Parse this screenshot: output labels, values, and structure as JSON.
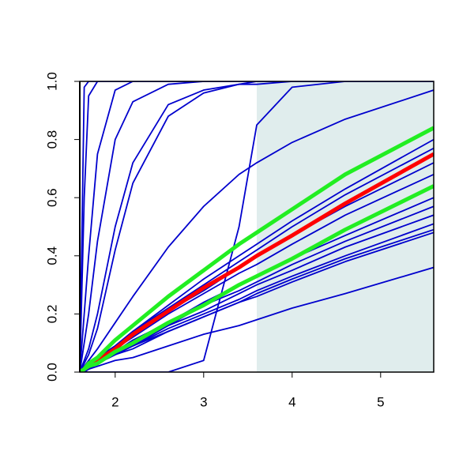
{
  "chart_data": {
    "type": "line",
    "x": [
      1.6,
      1.65,
      1.7,
      1.8,
      2.0,
      2.2,
      2.6,
      3.0,
      3.4,
      3.6,
      4.0,
      4.6,
      5.6
    ],
    "xlim": [
      1.6,
      5.6
    ],
    "ylim": [
      0,
      1
    ],
    "xticks": [
      2,
      3,
      4,
      5
    ],
    "yticks": [
      {
        "value": 0,
        "label": "0.0"
      },
      {
        "value": 0.2,
        "label": "0.2"
      },
      {
        "value": 0.4,
        "label": "0.4"
      },
      {
        "value": 0.6,
        "label": "0.6"
      },
      {
        "value": 0.8,
        "label": "0.8"
      },
      {
        "value": 1,
        "label": "1.0"
      }
    ],
    "shaded_region": {
      "x": [
        3.6,
        5.6
      ],
      "color": "#e0eded"
    },
    "series": [
      {
        "color": "#0000cd",
        "width": 1.8,
        "values": [
          0,
          0.98,
          1,
          1,
          1,
          1,
          1,
          1,
          1,
          1,
          1,
          1,
          1
        ]
      },
      {
        "color": "#0000cd",
        "width": 1.8,
        "values": [
          0,
          0.6,
          0.95,
          1,
          1,
          1,
          1,
          1,
          1,
          1,
          1,
          1,
          1
        ]
      },
      {
        "color": "#0000cd",
        "width": 1.8,
        "values": [
          0,
          0.2,
          0.4,
          0.75,
          0.97,
          1,
          1,
          1,
          1,
          1,
          1,
          1,
          1
        ]
      },
      {
        "color": "#0000cd",
        "width": 1.8,
        "values": [
          0,
          0.1,
          0.2,
          0.45,
          0.8,
          0.93,
          0.99,
          1,
          1,
          1,
          1,
          1,
          1
        ]
      },
      {
        "color": "#0000cd",
        "width": 1.8,
        "values": [
          0,
          0.04,
          0.08,
          0.2,
          0.5,
          0.72,
          0.92,
          0.97,
          0.99,
          1,
          1,
          1,
          1
        ]
      },
      {
        "color": "#0000cd",
        "width": 1.8,
        "values": [
          0,
          0.03,
          0.06,
          0.15,
          0.42,
          0.65,
          0.88,
          0.96,
          0.99,
          0.99,
          1,
          1,
          1
        ]
      },
      {
        "color": "#0000cd",
        "width": 1.8,
        "values": [
          0,
          0.02,
          0.04,
          0.08,
          0.17,
          0.26,
          0.43,
          0.57,
          0.68,
          0.72,
          0.79,
          0.87,
          0.97
        ]
      },
      {
        "color": "#0000cd",
        "width": 1.8,
        "values": [
          0,
          0,
          0,
          0,
          0,
          0,
          0,
          0.04,
          0.5,
          0.85,
          0.98,
          1,
          1
        ]
      },
      {
        "color": "#0000cd",
        "width": 1.8,
        "values": [
          0,
          0.01,
          0.02,
          0.05,
          0.09,
          0.14,
          0.23,
          0.32,
          0.4,
          0.44,
          0.52,
          0.63,
          0.8
        ]
      },
      {
        "color": "#0000cd",
        "width": 1.8,
        "values": [
          0,
          0.01,
          0.02,
          0.05,
          0.09,
          0.14,
          0.22,
          0.3,
          0.38,
          0.42,
          0.5,
          0.61,
          0.77
        ]
      },
      {
        "color": "#0000cd",
        "width": 1.8,
        "values": [
          0,
          0.01,
          0.02,
          0.04,
          0.08,
          0.13,
          0.21,
          0.28,
          0.36,
          0.4,
          0.47,
          0.57,
          0.72
        ]
      },
      {
        "color": "#0000cd",
        "width": 1.8,
        "values": [
          0,
          0.01,
          0.02,
          0.04,
          0.08,
          0.12,
          0.2,
          0.27,
          0.34,
          0.37,
          0.44,
          0.54,
          0.68
        ]
      },
      {
        "color": "#0000cd",
        "width": 1.8,
        "values": [
          0,
          0.01,
          0.02,
          0.04,
          0.07,
          0.11,
          0.17,
          0.24,
          0.3,
          0.33,
          0.39,
          0.47,
          0.6
        ]
      },
      {
        "color": "#0000cd",
        "width": 1.8,
        "values": [
          0,
          0.01,
          0.02,
          0.03,
          0.07,
          0.1,
          0.16,
          0.23,
          0.28,
          0.31,
          0.37,
          0.45,
          0.57
        ]
      },
      {
        "color": "#0000cd",
        "width": 1.8,
        "values": [
          0,
          0.01,
          0.02,
          0.03,
          0.06,
          0.09,
          0.16,
          0.21,
          0.27,
          0.3,
          0.35,
          0.43,
          0.54
        ]
      },
      {
        "color": "#0000cd",
        "width": 1.8,
        "values": [
          0,
          0.01,
          0.02,
          0.03,
          0.06,
          0.09,
          0.15,
          0.2,
          0.25,
          0.28,
          0.33,
          0.4,
          0.51
        ]
      },
      {
        "color": "#0000cd",
        "width": 1.8,
        "values": [
          0,
          0.01,
          0.01,
          0.03,
          0.06,
          0.09,
          0.14,
          0.19,
          0.24,
          0.27,
          0.32,
          0.39,
          0.49
        ]
      },
      {
        "color": "#0000cd",
        "width": 1.8,
        "values": [
          0,
          0.01,
          0.01,
          0.03,
          0.06,
          0.08,
          0.14,
          0.19,
          0.24,
          0.26,
          0.31,
          0.38,
          0.48
        ]
      },
      {
        "color": "#0000cd",
        "width": 1.8,
        "values": [
          0,
          0,
          0.01,
          0.02,
          0.04,
          0.05,
          0.09,
          0.13,
          0.16,
          0.18,
          0.22,
          0.27,
          0.36
        ]
      },
      {
        "color": "#ff0000",
        "width": 5,
        "values": [
          0,
          0.01,
          0.02,
          0.04,
          0.08,
          0.13,
          0.21,
          0.29,
          0.36,
          0.4,
          0.47,
          0.58,
          0.75
        ]
      },
      {
        "color": "#22ee22",
        "width": 5,
        "values": [
          0,
          0.01,
          0.03,
          0.05,
          0.11,
          0.16,
          0.26,
          0.35,
          0.44,
          0.48,
          0.56,
          0.68,
          0.84
        ]
      },
      {
        "color": "#22ee22",
        "width": 5,
        "values": [
          0,
          0.01,
          0.02,
          0.03,
          0.07,
          0.1,
          0.17,
          0.23,
          0.3,
          0.33,
          0.39,
          0.49,
          0.64
        ]
      }
    ]
  }
}
